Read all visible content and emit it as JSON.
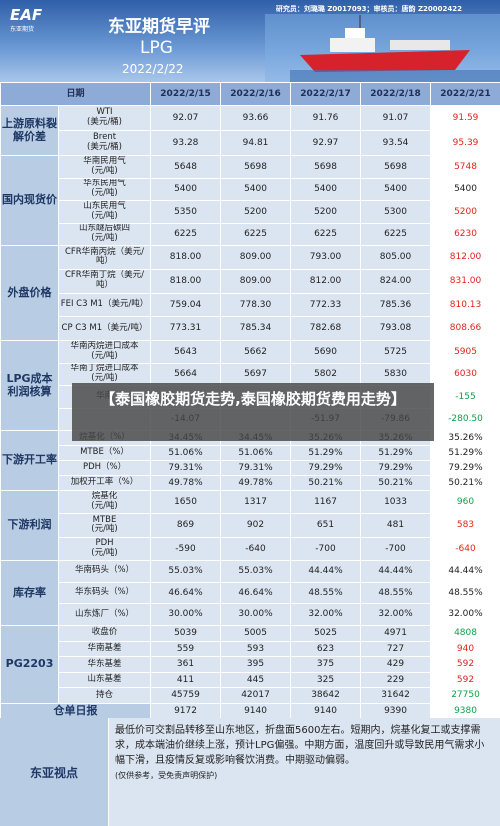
{
  "header": {
    "logo": "EAF",
    "logo_sub": "东亚期货",
    "title": "东亚期货早评",
    "product": "LPG",
    "date": "2022/2/22",
    "authors": "研究员：刘璐璐 Z0017093；审核员：唐韵 Z20002422"
  },
  "table": {
    "corner": "日期",
    "dates": [
      "2022/2/15",
      "2022/2/16",
      "2022/2/17",
      "2022/2/18",
      "2022/2/21"
    ],
    "colors": {
      "red": "#e3231c",
      "green": "#11a04a"
    },
    "groups": [
      {
        "name": "上游原料裂解价差",
        "height": 50,
        "rows": [
          {
            "label": "WTI\n(美元/桶)",
            "values": [
              "92.07",
              "93.66",
              "91.76",
              "91.07",
              "91.59"
            ],
            "last_color": "red"
          },
          {
            "label": "Brent\n(美元/桶)",
            "values": [
              "93.28",
              "94.81",
              "92.97",
              "93.54",
              "95.39"
            ],
            "last_color": "red"
          }
        ]
      },
      {
        "name": "国内现货价",
        "height": 90,
        "rows": [
          {
            "label": "华南民用气\n(元/吨)",
            "values": [
              "5648",
              "5698",
              "5698",
              "5698",
              "5748"
            ],
            "last_color": "red"
          },
          {
            "label": "华东民用气\n(元/吨)",
            "values": [
              "5400",
              "5400",
              "5400",
              "5400",
              "5400"
            ]
          },
          {
            "label": "山东民用气\n(元/吨)",
            "values": [
              "5350",
              "5200",
              "5200",
              "5300",
              "5200"
            ],
            "last_color": "red"
          },
          {
            "label": "山东醚后碳四\n(元/吨)",
            "values": [
              "6225",
              "6225",
              "6225",
              "6225",
              "6230"
            ],
            "last_color": "red"
          }
        ]
      },
      {
        "name": "外盘价格",
        "height": 95,
        "rows": [
          {
            "label": "CFR华南丙烷（美元/吨）",
            "values": [
              "818.00",
              "809.00",
              "793.00",
              "805.00",
              "812.00"
            ],
            "last_color": "red"
          },
          {
            "label": "CFR华南丁烷（美元/吨）",
            "values": [
              "818.00",
              "809.00",
              "812.00",
              "824.00",
              "831.00"
            ],
            "last_color": "red"
          },
          {
            "label": "FEI C3 M1（美元/吨）",
            "values": [
              "759.04",
              "778.30",
              "772.33",
              "785.36",
              "810.13"
            ],
            "last_color": "red"
          },
          {
            "label": "CP C3 M1（美元/吨）",
            "values": [
              "773.31",
              "785.34",
              "782.68",
              "793.08",
              "808.66"
            ],
            "last_color": "red"
          }
        ]
      },
      {
        "name": "LPG成本利润核算",
        "height": 90,
        "rows": [
          {
            "label": "华南丙烷进口成本\n(元/吨)",
            "values": [
              "5643",
              "5662",
              "5690",
              "5725",
              "5905"
            ],
            "last_color": "red"
          },
          {
            "label": "华南丁烷进口成本\n(元/吨)",
            "values": [
              "5664",
              "5697",
              "5802",
              "5830",
              "6030"
            ],
            "last_color": "red"
          },
          {
            "label": "华南",
            "values": [
              null,
              null,
              null,
              null,
              "-155"
            ],
            "last_color": "green"
          },
          {
            "label": null,
            "values": [
              "-14.07",
              null,
              "-51.97",
              "-79.86",
              "-280.50"
            ],
            "last_color": "green"
          }
        ]
      },
      {
        "name": "下游开工率",
        "height": 60,
        "rows": [
          {
            "label": "烷基化（%）",
            "values": [
              "34.45%",
              "34.45%",
              "35.26%",
              "35.26%",
              "35.26%"
            ]
          },
          {
            "label": "MTBE（%）",
            "values": [
              "51.06%",
              "51.06%",
              "51.29%",
              "51.29%",
              "51.29%"
            ]
          },
          {
            "label": "PDH（%）",
            "values": [
              "79.31%",
              "79.31%",
              "79.29%",
              "79.29%",
              "79.29%"
            ]
          },
          {
            "label": "加权开工率（%）",
            "values": [
              "49.78%",
              "49.78%",
              "50.21%",
              "50.21%",
              "50.21%"
            ]
          }
        ]
      },
      {
        "name": "下游利润",
        "height": 70,
        "rows": [
          {
            "label": "烷基化\n(元/吨)",
            "values": [
              "1650",
              "1317",
              "1167",
              "1033",
              "960"
            ],
            "last_color": "green"
          },
          {
            "label": "MTBE\n(元/吨)",
            "values": [
              "869",
              "902",
              "651",
              "481",
              "583"
            ],
            "last_color": "red"
          },
          {
            "label": "PDH\n(元/吨)",
            "values": [
              "-590",
              "-640",
              "-700",
              "-700",
              "-640"
            ],
            "last_color": "red"
          }
        ]
      },
      {
        "name": "库存率",
        "height": 65,
        "rows": [
          {
            "label": "华南码头（%）",
            "values": [
              "55.03%",
              "55.03%",
              "44.44%",
              "44.44%",
              "44.44%"
            ]
          },
          {
            "label": "华东码头（%）",
            "values": [
              "46.64%",
              "46.64%",
              "48.55%",
              "48.55%",
              "48.55%"
            ]
          },
          {
            "label": "山东炼厂（%）",
            "values": [
              "30.00%",
              "30.00%",
              "32.00%",
              "32.00%",
              "32.00%"
            ]
          }
        ]
      },
      {
        "name": "PG2203",
        "height": 78,
        "rows": [
          {
            "label": "收盘价",
            "values": [
              "5039",
              "5005",
              "5025",
              "4971",
              "4808"
            ],
            "last_color": "green"
          },
          {
            "label": "华南基差",
            "values": [
              "559",
              "593",
              "623",
              "727",
              "940"
            ],
            "last_color": "red"
          },
          {
            "label": "华东基差",
            "values": [
              "361",
              "395",
              "375",
              "429",
              "592"
            ],
            "last_color": "red"
          },
          {
            "label": "山东基差",
            "values": [
              "411",
              "445",
              "325",
              "229",
              "592"
            ],
            "last_color": "red"
          },
          {
            "label": "持仓",
            "values": [
              "45759",
              "42017",
              "38642",
              "31642",
              "27750"
            ],
            "last_color": "green"
          }
        ]
      },
      {
        "name": "仓单日报",
        "height": 15,
        "merged": true,
        "rows": [
          {
            "label": null,
            "values": [
              "9172",
              "9140",
              "9140",
              "9390",
              "9380"
            ],
            "last_color": "green"
          }
        ]
      }
    ]
  },
  "view": {
    "title": "东亚视点",
    "text": "最低价可交割品转移至山东地区，折盘面5600左右。短期内，烷基化复工或支撑需求，成本端油价继续上涨，预计LPG偏强。中期方面，温度回升或导致民用气需求小幅下滑，且疫情反复或影响餐饮消费。中期驱动偏弱。",
    "note": "(仅供参考，受免责声明保护)"
  },
  "banner": "【泰国橡胶期货走势,泰国橡胶期货费用走势】"
}
